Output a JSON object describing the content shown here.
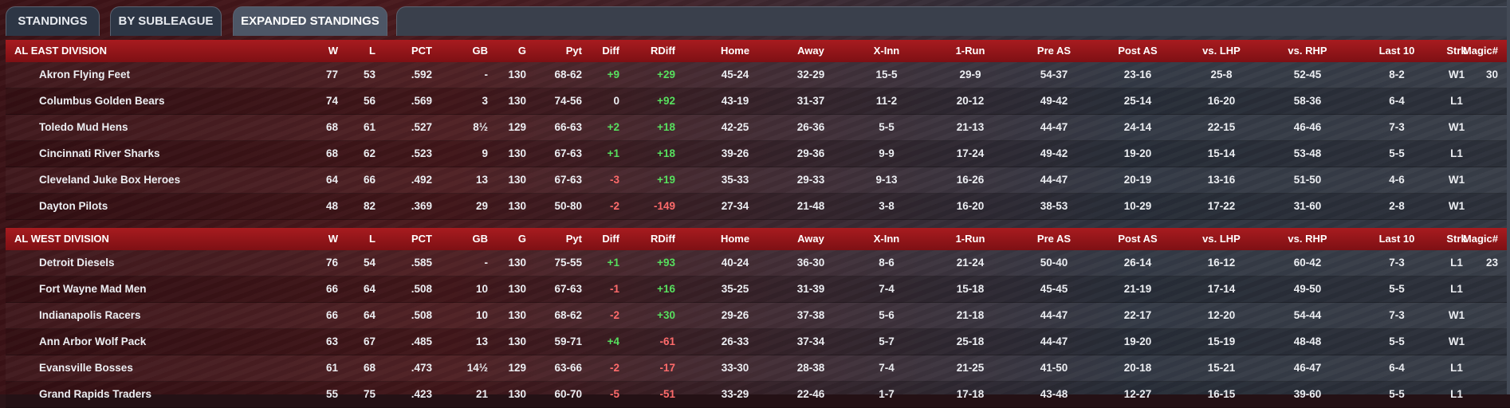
{
  "tabs": [
    {
      "label": "STANDINGS",
      "active": false
    },
    {
      "label": "BY SUBLEAGUE",
      "active": false
    },
    {
      "label": "EXPANDED STANDINGS",
      "active": true
    }
  ],
  "columns": [
    "W",
    "L",
    "PCT",
    "GB",
    "G",
    "Pyt",
    "Diff",
    "RDiff",
    "Home",
    "Away",
    "X-Inn",
    "1-Run",
    "Pre AS",
    "Post AS",
    "vs. LHP",
    "vs. RHP",
    "Last 10",
    "Strk",
    "Magic#"
  ],
  "divisions": [
    {
      "name": "AL EAST DIVISION",
      "teams": [
        {
          "team": "Akron  Flying Feet",
          "w": "77",
          "l": "53",
          "pct": ".592",
          "gb": "-",
          "g": "130",
          "pyt": "68-62",
          "diff": "+9",
          "rdiff": "+29",
          "home": "45-24",
          "away": "32-29",
          "xinn": "15-5",
          "onerun": "29-9",
          "preas": "54-37",
          "postas": "23-16",
          "vslhp": "25-8",
          "vsrhp": "52-45",
          "last10": "8-2",
          "strk": "W1",
          "magic": "30"
        },
        {
          "team": "Columbus Golden Bears",
          "w": "74",
          "l": "56",
          "pct": ".569",
          "gb": "3",
          "g": "130",
          "pyt": "74-56",
          "diff": "0",
          "rdiff": "+92",
          "home": "43-19",
          "away": "31-37",
          "xinn": "11-2",
          "onerun": "20-12",
          "preas": "49-42",
          "postas": "25-14",
          "vslhp": "16-20",
          "vsrhp": "58-36",
          "last10": "6-4",
          "strk": "L1",
          "magic": ""
        },
        {
          "team": "Toledo  Mud Hens",
          "w": "68",
          "l": "61",
          "pct": ".527",
          "gb": "8½",
          "g": "129",
          "pyt": "66-63",
          "diff": "+2",
          "rdiff": "+18",
          "home": "42-25",
          "away": "26-36",
          "xinn": "5-5",
          "onerun": "21-13",
          "preas": "44-47",
          "postas": "24-14",
          "vslhp": "22-15",
          "vsrhp": "46-46",
          "last10": "7-3",
          "strk": "W1",
          "magic": ""
        },
        {
          "team": "Cincinnati River Sharks",
          "w": "68",
          "l": "62",
          "pct": ".523",
          "gb": "9",
          "g": "130",
          "pyt": "67-63",
          "diff": "+1",
          "rdiff": "+18",
          "home": "39-26",
          "away": "29-36",
          "xinn": "9-9",
          "onerun": "17-24",
          "preas": "49-42",
          "postas": "19-20",
          "vslhp": "15-14",
          "vsrhp": "53-48",
          "last10": "5-5",
          "strk": "L1",
          "magic": ""
        },
        {
          "team": "Cleveland Juke Box Heroes",
          "w": "64",
          "l": "66",
          "pct": ".492",
          "gb": "13",
          "g": "130",
          "pyt": "67-63",
          "diff": "-3",
          "rdiff": "+19",
          "home": "35-33",
          "away": "29-33",
          "xinn": "9-13",
          "onerun": "16-26",
          "preas": "44-47",
          "postas": "20-19",
          "vslhp": "13-16",
          "vsrhp": "51-50",
          "last10": "4-6",
          "strk": "W1",
          "magic": ""
        },
        {
          "team": "Dayton Pilots",
          "w": "48",
          "l": "82",
          "pct": ".369",
          "gb": "29",
          "g": "130",
          "pyt": "50-80",
          "diff": "-2",
          "rdiff": "-149",
          "home": "27-34",
          "away": "21-48",
          "xinn": "3-8",
          "onerun": "16-20",
          "preas": "38-53",
          "postas": "10-29",
          "vslhp": "17-22",
          "vsrhp": "31-60",
          "last10": "2-8",
          "strk": "W1",
          "magic": ""
        }
      ]
    },
    {
      "name": "AL WEST DIVISION",
      "teams": [
        {
          "team": "Detroit Diesels",
          "w": "76",
          "l": "54",
          "pct": ".585",
          "gb": "-",
          "g": "130",
          "pyt": "75-55",
          "diff": "+1",
          "rdiff": "+93",
          "home": "40-24",
          "away": "36-30",
          "xinn": "8-6",
          "onerun": "21-24",
          "preas": "50-40",
          "postas": "26-14",
          "vslhp": "16-12",
          "vsrhp": "60-42",
          "last10": "7-3",
          "strk": "L1",
          "magic": "23"
        },
        {
          "team": "Fort Wayne Mad Men",
          "w": "66",
          "l": "64",
          "pct": ".508",
          "gb": "10",
          "g": "130",
          "pyt": "67-63",
          "diff": "-1",
          "rdiff": "+16",
          "home": "35-25",
          "away": "31-39",
          "xinn": "7-4",
          "onerun": "15-18",
          "preas": "45-45",
          "postas": "21-19",
          "vslhp": "17-14",
          "vsrhp": "49-50",
          "last10": "5-5",
          "strk": "L1",
          "magic": ""
        },
        {
          "team": "Indianapolis Racers",
          "w": "66",
          "l": "64",
          "pct": ".508",
          "gb": "10",
          "g": "130",
          "pyt": "68-62",
          "diff": "-2",
          "rdiff": "+30",
          "home": "29-26",
          "away": "37-38",
          "xinn": "5-6",
          "onerun": "21-18",
          "preas": "44-47",
          "postas": "22-17",
          "vslhp": "12-20",
          "vsrhp": "54-44",
          "last10": "7-3",
          "strk": "W1",
          "magic": ""
        },
        {
          "team": "Ann Arbor Wolf Pack",
          "w": "63",
          "l": "67",
          "pct": ".485",
          "gb": "13",
          "g": "130",
          "pyt": "59-71",
          "diff": "+4",
          "rdiff": "-61",
          "home": "26-33",
          "away": "37-34",
          "xinn": "5-7",
          "onerun": "25-18",
          "preas": "44-47",
          "postas": "19-20",
          "vslhp": "15-19",
          "vsrhp": "48-48",
          "last10": "5-5",
          "strk": "W1",
          "magic": ""
        },
        {
          "team": "Evansville Bosses",
          "w": "61",
          "l": "68",
          "pct": ".473",
          "gb": "14½",
          "g": "129",
          "pyt": "63-66",
          "diff": "-2",
          "rdiff": "-17",
          "home": "33-30",
          "away": "28-38",
          "xinn": "7-4",
          "onerun": "21-25",
          "preas": "41-50",
          "postas": "20-18",
          "vslhp": "15-21",
          "vsrhp": "46-47",
          "last10": "6-4",
          "strk": "L1",
          "magic": ""
        },
        {
          "team": "Grand Rapids Traders",
          "w": "55",
          "l": "75",
          "pct": ".423",
          "gb": "21",
          "g": "130",
          "pyt": "60-70",
          "diff": "-5",
          "rdiff": "-51",
          "home": "33-29",
          "away": "22-46",
          "xinn": "1-7",
          "onerun": "17-18",
          "preas": "43-48",
          "postas": "12-27",
          "vslhp": "16-15",
          "vsrhp": "39-60",
          "last10": "5-5",
          "strk": "L1",
          "magic": ""
        }
      ]
    }
  ]
}
